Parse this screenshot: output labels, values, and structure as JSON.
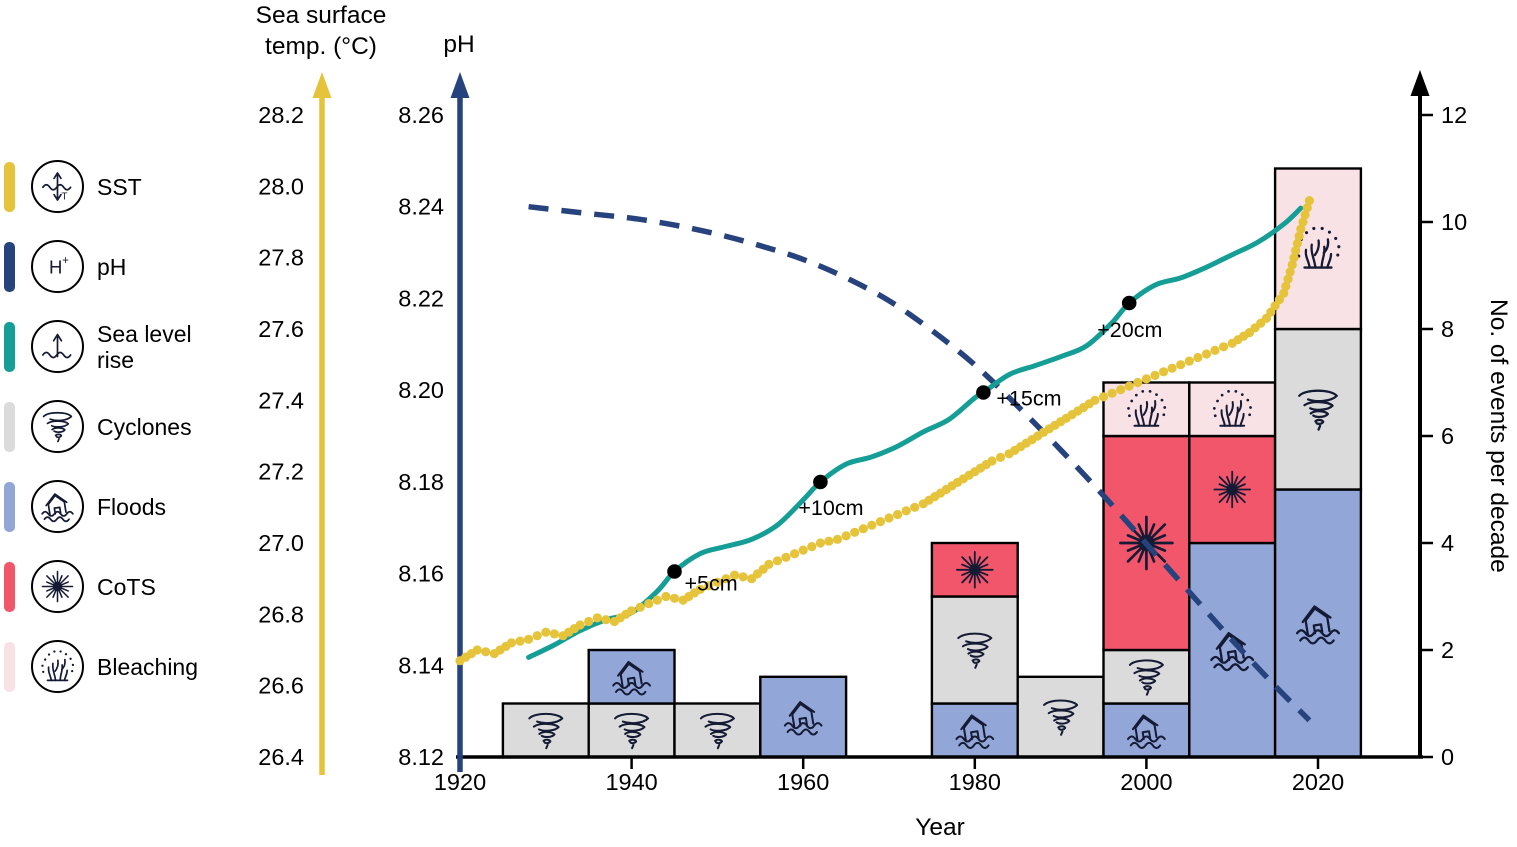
{
  "legend": {
    "items": [
      {
        "key": "sst",
        "label": "SST",
        "color": "#E5C43C",
        "icon": "icon-sst"
      },
      {
        "key": "ph",
        "label": "pH",
        "color": "#27437E",
        "icon": "icon-ph"
      },
      {
        "key": "sea_level",
        "label": "Sea level\nrise",
        "color": "#149E96",
        "icon": "icon-sea"
      },
      {
        "key": "cyclones",
        "label": "Cyclones",
        "color": "#DBDBDB",
        "icon": "icon-cyclone"
      },
      {
        "key": "floods",
        "label": "Floods",
        "color": "#92A7D7",
        "icon": "icon-flood"
      },
      {
        "key": "cots",
        "label": "CoTS",
        "color": "#F2566B",
        "icon": "icon-cots"
      },
      {
        "key": "bleaching",
        "label": "Bleaching",
        "color": "#F9E2E6",
        "icon": "icon-bleaching"
      }
    ]
  },
  "chart_data": {
    "type": "mixed",
    "subtypes": [
      "stacked-bar",
      "line",
      "dotted-line"
    ],
    "grid": false,
    "axes": {
      "sst": {
        "title": "Sea surface\ntemp. (°C)",
        "color": "#E5C43C",
        "range": [
          26.4,
          28.2
        ],
        "ticks": [
          "26.4",
          "26.6",
          "26.8",
          "27.0",
          "27.2",
          "27.4",
          "27.6",
          "27.8",
          "28.0",
          "28.2"
        ]
      },
      "ph": {
        "title": "pH",
        "color": "#27437E",
        "range": [
          8.12,
          8.26
        ],
        "ticks": [
          "8.12",
          "8.14",
          "8.16",
          "8.18",
          "8.20",
          "8.22",
          "8.24",
          "8.26"
        ]
      },
      "events": {
        "title": "No. of events per decade",
        "color": "#000000",
        "range": [
          0,
          12
        ],
        "ticks": [
          "0",
          "2",
          "4",
          "6",
          "8",
          "10",
          "12"
        ]
      },
      "year": {
        "title": "Year",
        "range": [
          1920,
          2032
        ],
        "ticks": [
          "1920",
          "1940",
          "1960",
          "1980",
          "2000",
          "2020"
        ]
      }
    },
    "categories": {
      "cyclones": {
        "label": "Cyclones",
        "color": "#DBDBDB",
        "icon": "icon-cyclone"
      },
      "floods": {
        "label": "Floods",
        "color": "#92A7D7",
        "icon": "icon-flood"
      },
      "cots": {
        "label": "CoTS",
        "color": "#F2566B",
        "icon": "icon-cots"
      },
      "bleaching": {
        "label": "Bleaching",
        "color": "#F9E2E6",
        "icon": "icon-bleaching"
      }
    },
    "bars": [
      {
        "from": 1925,
        "to": 1935,
        "segments": [
          {
            "category": "cyclones",
            "value": 1
          }
        ]
      },
      {
        "from": 1935,
        "to": 1945,
        "segments": [
          {
            "category": "cyclones",
            "value": 1
          },
          {
            "category": "floods",
            "value": 1
          }
        ]
      },
      {
        "from": 1945,
        "to": 1955,
        "segments": [
          {
            "category": "cyclones",
            "value": 1
          }
        ]
      },
      {
        "from": 1955,
        "to": 1965,
        "segments": [
          {
            "category": "floods",
            "value": 1.5
          }
        ]
      },
      {
        "from": 1975,
        "to": 1985,
        "segments": [
          {
            "category": "floods",
            "value": 1
          },
          {
            "category": "cyclones",
            "value": 2
          },
          {
            "category": "cots",
            "value": 1
          }
        ]
      },
      {
        "from": 1985,
        "to": 1995,
        "segments": [
          {
            "category": "cyclones",
            "value": 1.5
          }
        ]
      },
      {
        "from": 1995,
        "to": 2005,
        "segments": [
          {
            "category": "floods",
            "value": 1
          },
          {
            "category": "cyclones",
            "value": 1
          },
          {
            "category": "cots",
            "value": 4
          },
          {
            "category": "bleaching",
            "value": 1
          }
        ]
      },
      {
        "from": 2005,
        "to": 2015,
        "segments": [
          {
            "category": "floods",
            "value": 4
          },
          {
            "category": "cots",
            "value": 2
          },
          {
            "category": "bleaching",
            "value": 1
          }
        ]
      },
      {
        "from": 2015,
        "to": 2025,
        "segments": [
          {
            "category": "floods",
            "value": 5
          },
          {
            "category": "cyclones",
            "value": 3
          },
          {
            "category": "bleaching",
            "value": 3
          }
        ]
      }
    ],
    "series": {
      "sst": {
        "name": "SST",
        "units": "°C",
        "color": "#E5C43C",
        "style": "dotted",
        "points": [
          [
            1920,
            26.67
          ],
          [
            1922,
            26.7
          ],
          [
            1924,
            26.69
          ],
          [
            1926,
            26.72
          ],
          [
            1928,
            26.73
          ],
          [
            1930,
            26.75
          ],
          [
            1932,
            26.74
          ],
          [
            1934,
            26.77
          ],
          [
            1936,
            26.79
          ],
          [
            1938,
            26.78
          ],
          [
            1940,
            26.81
          ],
          [
            1942,
            26.83
          ],
          [
            1944,
            26.85
          ],
          [
            1946,
            26.84
          ],
          [
            1948,
            26.87
          ],
          [
            1950,
            26.89
          ],
          [
            1952,
            26.91
          ],
          [
            1954,
            26.9
          ],
          [
            1956,
            26.94
          ],
          [
            1958,
            26.96
          ],
          [
            1960,
            26.98
          ],
          [
            1962,
            27.0
          ],
          [
            1964,
            27.01
          ],
          [
            1966,
            27.03
          ],
          [
            1968,
            27.05
          ],
          [
            1970,
            27.07
          ],
          [
            1972,
            27.09
          ],
          [
            1974,
            27.11
          ],
          [
            1976,
            27.14
          ],
          [
            1978,
            27.17
          ],
          [
            1980,
            27.2
          ],
          [
            1982,
            27.23
          ],
          [
            1984,
            27.25
          ],
          [
            1986,
            27.28
          ],
          [
            1988,
            27.31
          ],
          [
            1990,
            27.34
          ],
          [
            1992,
            27.37
          ],
          [
            1994,
            27.4
          ],
          [
            1996,
            27.42
          ],
          [
            1998,
            27.44
          ],
          [
            2000,
            27.46
          ],
          [
            2002,
            27.48
          ],
          [
            2004,
            27.5
          ],
          [
            2006,
            27.52
          ],
          [
            2008,
            27.54
          ],
          [
            2010,
            27.56
          ],
          [
            2012,
            27.59
          ],
          [
            2014,
            27.63
          ],
          [
            2016,
            27.7
          ],
          [
            2017,
            27.78
          ],
          [
            2018,
            27.88
          ],
          [
            2019,
            27.96
          ]
        ]
      },
      "ph": {
        "name": "pH",
        "units": "pH",
        "color": "#27437E",
        "style": "dashed",
        "points": [
          [
            1928,
            8.24
          ],
          [
            1935,
            8.2385
          ],
          [
            1940,
            8.2375
          ],
          [
            1945,
            8.236
          ],
          [
            1950,
            8.234
          ],
          [
            1955,
            8.2315
          ],
          [
            1960,
            8.2285
          ],
          [
            1965,
            8.2245
          ],
          [
            1970,
            8.2195
          ],
          [
            1975,
            8.213
          ],
          [
            1980,
            8.2055
          ],
          [
            1985,
            8.1965
          ],
          [
            1990,
            8.187
          ],
          [
            1995,
            8.177
          ],
          [
            2000,
            8.1665
          ],
          [
            2005,
            8.156
          ],
          [
            2010,
            8.1455
          ],
          [
            2015,
            8.1355
          ],
          [
            2019,
            8.128
          ]
        ]
      },
      "sea_level": {
        "name": "Sea level rise",
        "units": "cm",
        "color": "#149E96",
        "style": "solid",
        "points": [
          [
            1928,
            0.2
          ],
          [
            1931,
            0.9
          ],
          [
            1934,
            1.7
          ],
          [
            1937,
            2.3
          ],
          [
            1940,
            2.7
          ],
          [
            1943,
            3.9
          ],
          [
            1945,
            5
          ],
          [
            1948,
            6
          ],
          [
            1951,
            6.4
          ],
          [
            1954,
            6.8
          ],
          [
            1957,
            7.6
          ],
          [
            1960,
            9
          ],
          [
            1962,
            10
          ],
          [
            1965,
            11
          ],
          [
            1968,
            11.4
          ],
          [
            1971,
            12
          ],
          [
            1974,
            12.8
          ],
          [
            1977,
            13.5
          ],
          [
            1980,
            14.7
          ],
          [
            1981,
            15
          ],
          [
            1984,
            16
          ],
          [
            1987,
            16.5
          ],
          [
            1990,
            17
          ],
          [
            1993,
            17.6
          ],
          [
            1996,
            18.9
          ],
          [
            1998,
            20
          ],
          [
            2001,
            21
          ],
          [
            2004,
            21.4
          ],
          [
            2007,
            22
          ],
          [
            2010,
            22.7
          ],
          [
            2013,
            23.4
          ],
          [
            2016,
            24.4
          ],
          [
            2018,
            25.3
          ]
        ],
        "annotations": [
          {
            "label": "+5cm",
            "year": 1945,
            "cm": 5,
            "dx": 10,
            "dy": 19
          },
          {
            "label": "+10cm",
            "year": 1962,
            "cm": 10,
            "dx": -22,
            "dy": 33
          },
          {
            "label": "+15cm",
            "year": 1981,
            "cm": 15,
            "dx": 13,
            "dy": 13
          },
          {
            "label": "+20cm",
            "year": 1998,
            "cm": 20,
            "dx": -32,
            "dy": 34
          }
        ]
      }
    }
  }
}
